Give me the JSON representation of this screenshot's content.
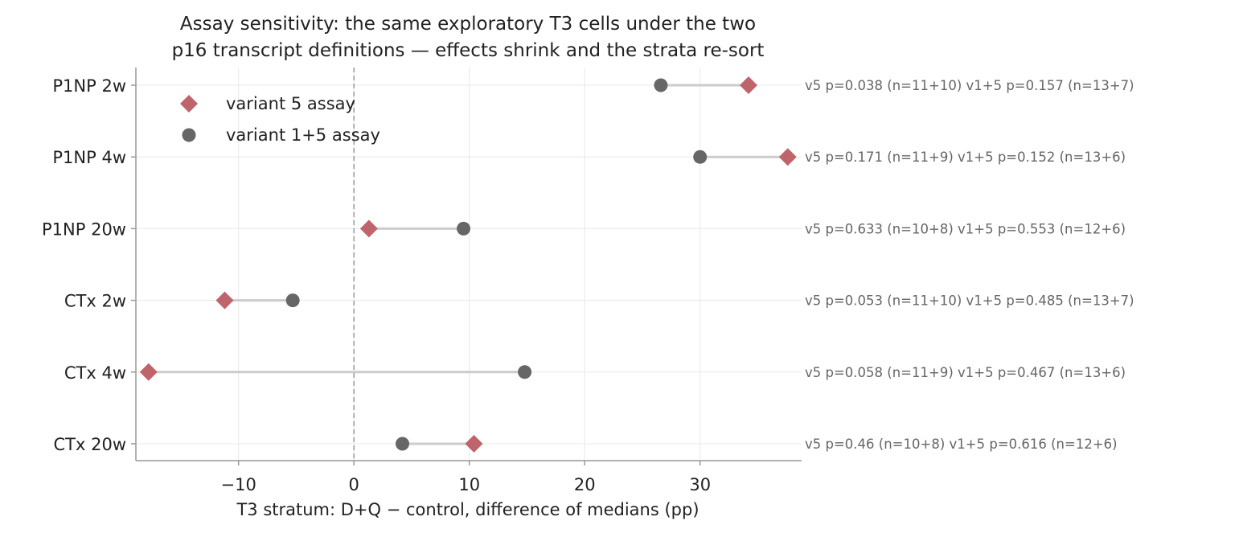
{
  "chart_data": {
    "type": "dot",
    "title": [
      "Assay sensitivity: the same exploratory T3 cells under the two",
      "p16 transcript definitions — effects shrink and the strata re-sort"
    ],
    "xlabel": "T3 stratum: D+Q − control, difference of medians (pp)",
    "xlim": [
      -18.9,
      38.8
    ],
    "xticks": [
      -10,
      0,
      10,
      20,
      30
    ],
    "xtick_labels": [
      "−10",
      "0",
      "10",
      "20",
      "30"
    ],
    "reference_line_x": 0,
    "grid": true,
    "legend_position": "top-left",
    "categories": [
      "P1NP  2w",
      "P1NP  4w",
      "P1NP  20w",
      "CTx  2w",
      "CTx  4w",
      "CTx  20w"
    ],
    "series": [
      {
        "name": "variant 5 assay",
        "marker": "diamond",
        "color": "#c0646b",
        "values": [
          34.2,
          37.6,
          1.3,
          -11.2,
          -17.8,
          10.4
        ]
      },
      {
        "name": "variant 1+5 assay",
        "marker": "circle",
        "color": "#666666",
        "values": [
          26.6,
          30.0,
          9.5,
          -5.3,
          14.8,
          4.2
        ]
      }
    ],
    "annotations": [
      "v5 p=0.038 (n=11+10)   v1+5 p=0.157 (n=13+7)",
      "v5 p=0.171 (n=11+9)   v1+5 p=0.152 (n=13+6)",
      "v5 p=0.633 (n=10+8)   v1+5 p=0.553 (n=12+6)",
      "v5 p=0.053 (n=11+10)   v1+5 p=0.485 (n=13+7)",
      "v5 p=0.058 (n=11+9)   v1+5 p=0.467 (n=13+6)",
      "v5 p=0.46 (n=10+8)   v1+5 p=0.616 (n=12+6)"
    ]
  }
}
